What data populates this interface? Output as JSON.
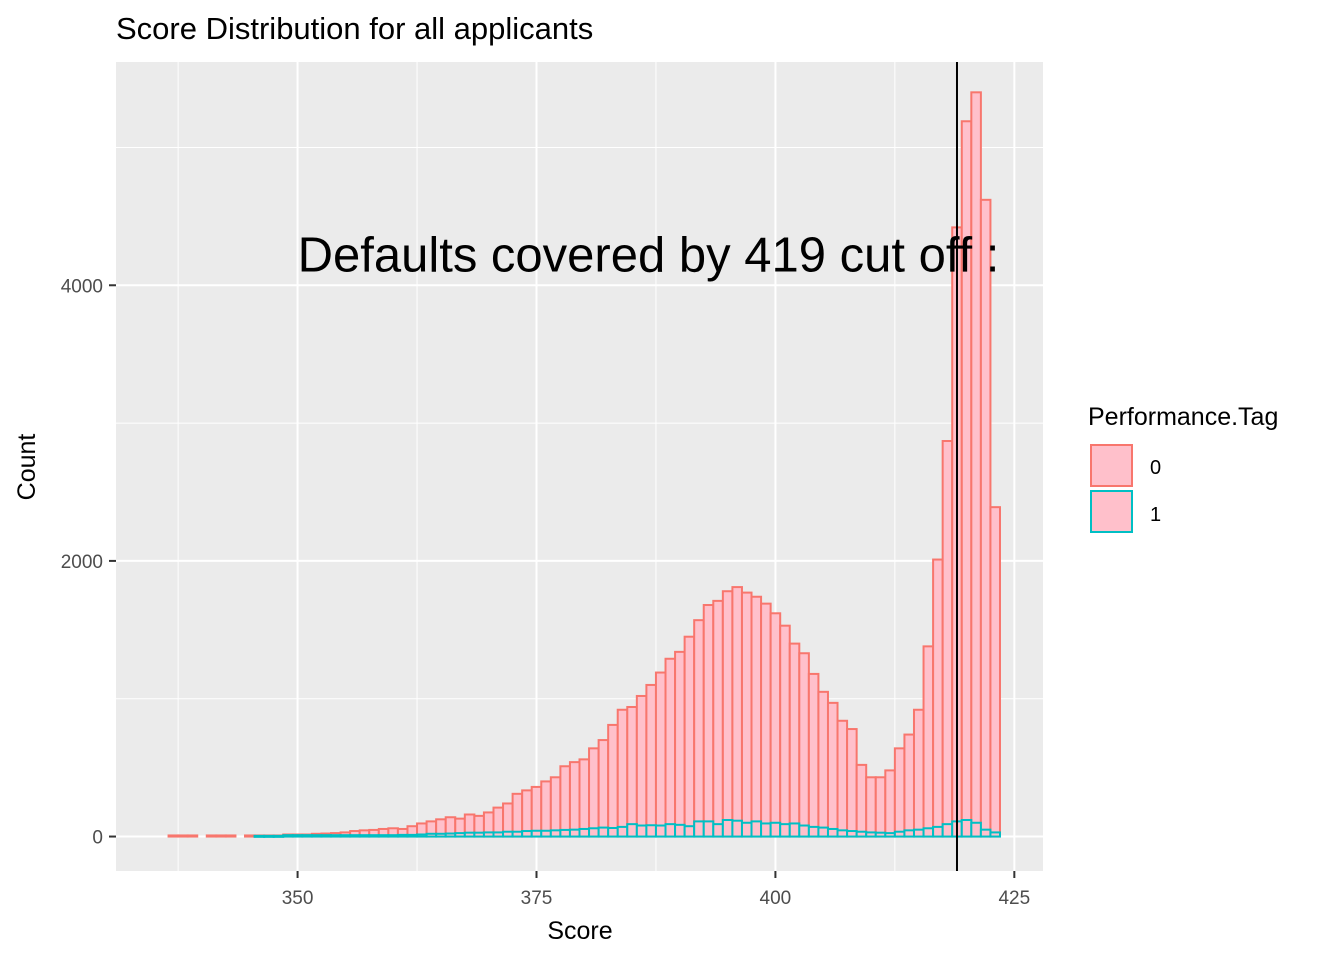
{
  "chart_data": {
    "type": "bar",
    "title": "Score Distribution for all applicants",
    "xlabel": "Score",
    "ylabel": "Count",
    "xlim": [
      331,
      428
    ],
    "ylim": [
      -250,
      5620
    ],
    "x_ticks": [
      350,
      375,
      400,
      425
    ],
    "y_ticks": [
      0,
      2000,
      4000
    ],
    "bin_width": 1,
    "grid": true,
    "legend": {
      "title": "Performance.Tag",
      "placement": "right",
      "entries": [
        "0",
        "1"
      ]
    },
    "annotation": {
      "text": "Defaults covered by 419 cut off :",
      "x": 350,
      "y": 4100
    },
    "vline": {
      "x": 419
    },
    "colors": {
      "panel": "#ebebeb",
      "grid": "#ffffff",
      "fill": "#ffc0cb",
      "series_0": "#f8766d",
      "series_1": "#00bfc4",
      "vline": "#000000"
    },
    "series": [
      {
        "name": "0",
        "x": [
          337,
          338,
          339,
          341,
          342,
          343,
          345,
          346,
          347,
          348,
          349,
          350,
          351,
          352,
          353,
          354,
          355,
          356,
          357,
          358,
          359,
          360,
          361,
          362,
          363,
          364,
          365,
          366,
          367,
          368,
          369,
          370,
          371,
          372,
          373,
          374,
          375,
          376,
          377,
          378,
          379,
          380,
          381,
          382,
          383,
          384,
          385,
          386,
          387,
          388,
          389,
          390,
          391,
          392,
          393,
          394,
          395,
          396,
          397,
          398,
          399,
          400,
          401,
          402,
          403,
          404,
          405,
          406,
          407,
          408,
          409,
          410,
          411,
          412,
          413,
          414,
          415,
          416,
          417,
          418,
          419,
          420,
          421,
          422,
          423
        ],
        "values": [
          8,
          8,
          8,
          8,
          8,
          8,
          8,
          8,
          8,
          8,
          15,
          15,
          15,
          20,
          22,
          25,
          30,
          40,
          45,
          48,
          55,
          60,
          55,
          75,
          95,
          110,
          125,
          140,
          130,
          160,
          150,
          175,
          210,
          240,
          310,
          335,
          360,
          400,
          430,
          510,
          540,
          560,
          640,
          700,
          810,
          920,
          940,
          1020,
          1100,
          1190,
          1290,
          1340,
          1450,
          1570,
          1680,
          1710,
          1780,
          1810,
          1770,
          1740,
          1690,
          1620,
          1530,
          1400,
          1330,
          1180,
          1050,
          970,
          840,
          780,
          520,
          430,
          430,
          480,
          640,
          740,
          920,
          1380,
          2010,
          2870,
          4420,
          5190,
          5400,
          4620,
          2390
        ]
      },
      {
        "name": "1",
        "x": [
          346,
          347,
          348,
          349,
          350,
          351,
          352,
          353,
          354,
          355,
          356,
          357,
          358,
          359,
          360,
          361,
          362,
          363,
          364,
          365,
          366,
          367,
          368,
          369,
          370,
          371,
          372,
          373,
          374,
          375,
          376,
          377,
          378,
          379,
          380,
          381,
          382,
          383,
          384,
          385,
          386,
          387,
          388,
          389,
          390,
          391,
          392,
          393,
          394,
          395,
          396,
          397,
          398,
          399,
          400,
          401,
          402,
          403,
          404,
          405,
          406,
          407,
          408,
          409,
          410,
          411,
          412,
          413,
          414,
          415,
          416,
          417,
          418,
          419,
          420,
          421,
          422,
          423
        ],
        "values": [
          5,
          5,
          5,
          10,
          10,
          10,
          10,
          10,
          10,
          10,
          10,
          10,
          10,
          10,
          10,
          12,
          12,
          15,
          20,
          20,
          22,
          25,
          28,
          28,
          30,
          30,
          35,
          35,
          40,
          42,
          42,
          45,
          48,
          50,
          55,
          60,
          65,
          62,
          70,
          90,
          80,
          82,
          80,
          90,
          85,
          75,
          110,
          110,
          90,
          120,
          115,
          100,
          110,
          95,
          100,
          90,
          95,
          80,
          70,
          65,
          55,
          45,
          40,
          35,
          30,
          28,
          25,
          35,
          45,
          50,
          60,
          70,
          90,
          110,
          120,
          100,
          50,
          30
        ]
      }
    ]
  }
}
